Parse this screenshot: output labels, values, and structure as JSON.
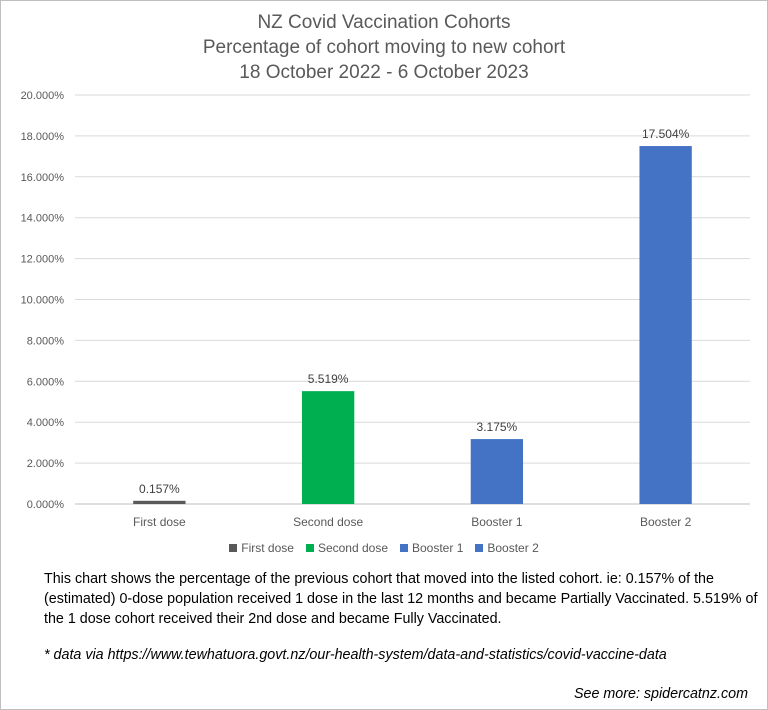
{
  "chart_data": {
    "type": "bar",
    "title": [
      "NZ Covid Vaccination Cohorts",
      "Percentage of cohort moving to new cohort",
      "18 October 2022 - 6 October 2023"
    ],
    "categories": [
      "First dose",
      "Second dose",
      "Booster 1",
      "Booster 2"
    ],
    "values": [
      0.157,
      5.519,
      3.175,
      17.504
    ],
    "data_labels": [
      "0.157%",
      "5.519%",
      "3.175%",
      "17.504%"
    ],
    "colors": [
      "#595959",
      "#00b050",
      "#4472c4",
      "#4472c4"
    ],
    "yticks": [
      "0.000%",
      "2.000%",
      "4.000%",
      "6.000%",
      "8.000%",
      "10.000%",
      "12.000%",
      "14.000%",
      "16.000%",
      "18.000%",
      "20.000%"
    ],
    "ylim": [
      0,
      20
    ],
    "grid": true,
    "legend_position": "bottom",
    "legend": [
      {
        "name": "First dose",
        "color": "#595959"
      },
      {
        "name": "Second dose",
        "color": "#00b050"
      },
      {
        "name": "Booster 1",
        "color": "#4472c4"
      },
      {
        "name": "Booster 2",
        "color": "#4472c4"
      }
    ]
  },
  "caption": "This chart shows the percentage of the previous cohort that moved into the listed cohort.  ie: 0.157% of the (estimated) 0-dose population received 1 dose in the last 12 months and became Partially Vaccinated. 5.519% of the 1 dose cohort received their 2nd dose and became Fully Vaccinated.",
  "source": "* data via https://www.tewhatuora.govt.nz/our-health-system/data-and-statistics/covid-vaccine-data",
  "see_more": "See more: spidercatnz.com"
}
